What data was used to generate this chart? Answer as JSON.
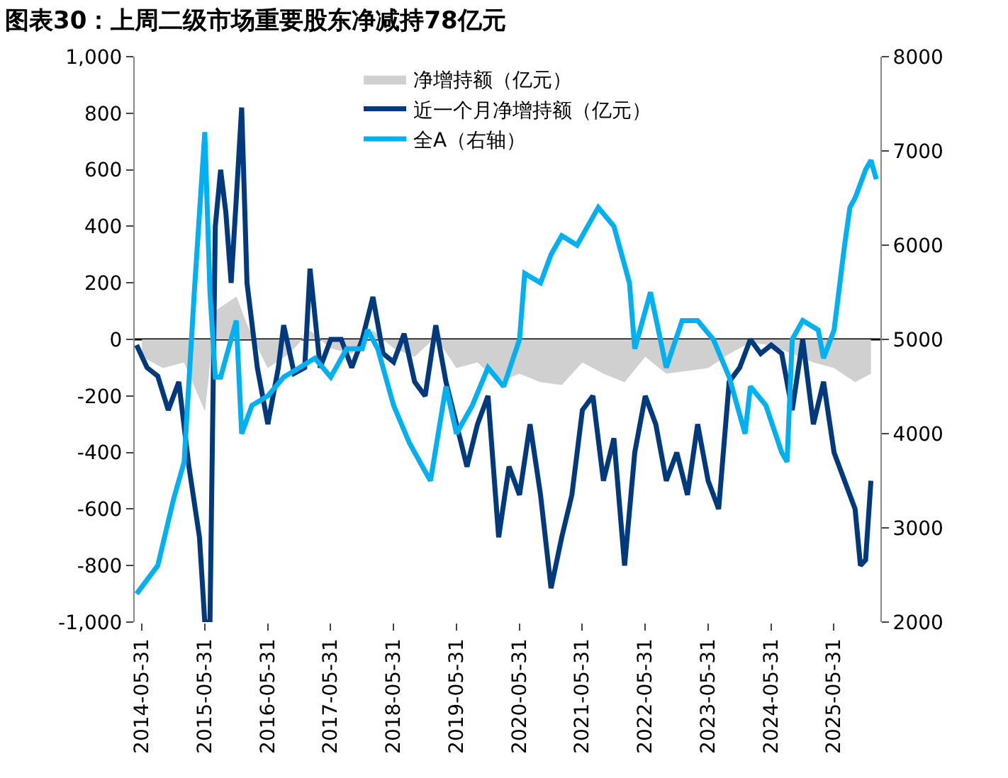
{
  "chart_data": {
    "type": "line",
    "title": "图表30：上周二级市场重要股东净减持78亿元",
    "xlim": [
      "2014-04-20",
      "2026-02-25"
    ],
    "xticks": [
      {
        "value": "2014-05-31",
        "label": "2014-05-31"
      },
      {
        "value": "2015-05-31",
        "label": "2015-05-31"
      },
      {
        "value": "2016-05-31",
        "label": "2016-05-31"
      },
      {
        "value": "2017-05-31",
        "label": "2017-05-31"
      },
      {
        "value": "2018-05-31",
        "label": "2018-05-31"
      },
      {
        "value": "2019-05-31",
        "label": "2019-05-31"
      },
      {
        "value": "2020-05-31",
        "label": "2020-05-31"
      },
      {
        "value": "2021-05-31",
        "label": "2021-05-31"
      },
      {
        "value": "2022-05-31",
        "label": "2022-05-31"
      },
      {
        "value": "2023-05-31",
        "label": "2023-05-31"
      },
      {
        "value": "2024-05-31",
        "label": "2024-05-31"
      },
      {
        "value": "2025-05-31",
        "label": "2025-05-31"
      }
    ],
    "ylim": [
      -1000,
      1000
    ],
    "yticks": [
      {
        "value": -1000,
        "label": "-1,000"
      },
      -800,
      -600,
      -400,
      -200,
      0,
      200,
      400,
      600,
      800,
      {
        "value": 1000,
        "label": "1,000"
      }
    ],
    "y2lim": [
      2000,
      8000
    ],
    "y2ticks": [
      2000,
      3000,
      4000,
      5000,
      6000,
      7000,
      8000
    ],
    "legend": "top",
    "grid": false,
    "ref_lines": [
      {
        "axis": "y",
        "value": 0,
        "color": "#000000"
      }
    ],
    "series": [
      {
        "name": "净增持额（亿元）",
        "type": "area",
        "color": "#d0d0d0",
        "x": [
          "2014-06",
          "2014-10",
          "2015-02",
          "2015-06",
          "2015-08",
          "2015-12",
          "2016-02",
          "2016-06",
          "2016-10",
          "2017-02",
          "2017-06",
          "2017-10",
          "2018-02",
          "2018-06",
          "2018-10",
          "2019-02",
          "2019-06",
          "2019-10",
          "2020-02",
          "2020-06",
          "2020-10",
          "2021-02",
          "2021-06",
          "2021-10",
          "2022-02",
          "2022-06",
          "2022-10",
          "2023-02",
          "2023-06",
          "2023-10",
          "2024-02",
          "2024-06",
          "2024-10",
          "2025-02",
          "2025-06",
          "2025-10",
          "2026-01"
        ],
        "values": [
          -60,
          -100,
          -80,
          -250,
          100,
          150,
          50,
          -100,
          -50,
          30,
          -30,
          -50,
          30,
          -30,
          -60,
          10,
          -100,
          -80,
          -150,
          -120,
          -150,
          -160,
          -80,
          -120,
          -150,
          -60,
          -120,
          -110,
          -100,
          -50,
          -10,
          -20,
          -50,
          -80,
          -100,
          -150,
          -120
        ]
      },
      {
        "name": "近一个月净增持额（亿元）",
        "color": "#003a7d",
        "x": [
          "2014-05",
          "2014-07",
          "2014-09",
          "2014-11",
          "2015-01",
          "2015-03",
          "2015-05",
          "2015-06",
          "2015-07",
          "2015-08",
          "2015-09",
          "2015-10",
          "2015-11",
          "2015-12",
          "2016-01",
          "2016-02",
          "2016-04",
          "2016-06",
          "2016-08",
          "2016-09",
          "2016-11",
          "2017-01",
          "2017-02",
          "2017-04",
          "2017-06",
          "2017-08",
          "2017-10",
          "2017-12",
          "2018-02",
          "2018-04",
          "2018-06",
          "2018-08",
          "2018-10",
          "2018-12",
          "2019-02",
          "2019-04",
          "2019-06",
          "2019-08",
          "2019-10",
          "2019-12",
          "2020-02",
          "2020-04",
          "2020-06",
          "2020-08",
          "2020-10",
          "2020-12",
          "2021-02",
          "2021-04",
          "2021-06",
          "2021-08",
          "2021-10",
          "2021-12",
          "2022-02",
          "2022-04",
          "2022-06",
          "2022-08",
          "2022-10",
          "2022-12",
          "2023-02",
          "2023-04",
          "2023-06",
          "2023-08",
          "2023-10",
          "2023-12",
          "2024-02",
          "2024-04",
          "2024-06",
          "2024-08",
          "2024-10",
          "2024-12",
          "2025-02",
          "2025-04",
          "2025-06",
          "2025-08",
          "2025-10",
          "2025-11",
          "2025-12",
          "2026-01"
        ],
        "values": [
          -20,
          -100,
          -130,
          -250,
          -150,
          -450,
          -700,
          -1000,
          -1000,
          400,
          600,
          450,
          200,
          500,
          820,
          200,
          -100,
          -300,
          -100,
          50,
          -120,
          -100,
          250,
          -100,
          0,
          0,
          -100,
          0,
          150,
          -50,
          -80,
          20,
          -150,
          -200,
          50,
          -150,
          -300,
          -450,
          -300,
          -200,
          -700,
          -450,
          -550,
          -300,
          -550,
          -880,
          -700,
          -550,
          -250,
          -200,
          -500,
          -350,
          -800,
          -400,
          -200,
          -300,
          -500,
          -400,
          -550,
          -300,
          -500,
          -600,
          -150,
          -100,
          0,
          -50,
          -20,
          -50,
          -250,
          0,
          -300,
          -150,
          -400,
          -500,
          -600,
          -800,
          -780,
          -500
        ]
      },
      {
        "name": "全A（右轴）",
        "axis": "y2",
        "color": "#00b0f0",
        "x": [
          "2014-05",
          "2014-09",
          "2014-12",
          "2015-02",
          "2015-04",
          "2015-06",
          "2015-07",
          "2015-08",
          "2015-09",
          "2015-10",
          "2015-12",
          "2016-01",
          "2016-03",
          "2016-06",
          "2016-09",
          "2016-12",
          "2017-03",
          "2017-06",
          "2017-09",
          "2017-12",
          "2018-01",
          "2018-03",
          "2018-06",
          "2018-09",
          "2018-12",
          "2019-01",
          "2019-04",
          "2019-06",
          "2019-09",
          "2019-12",
          "2020-03",
          "2020-06",
          "2020-07",
          "2020-10",
          "2020-12",
          "2021-02",
          "2021-05",
          "2021-08",
          "2021-09",
          "2021-12",
          "2022-03",
          "2022-04",
          "2022-07",
          "2022-10",
          "2023-01",
          "2023-04",
          "2023-07",
          "2023-10",
          "2024-01",
          "2024-02",
          "2024-05",
          "2024-08",
          "2024-09",
          "2024-10",
          "2024-12",
          "2025-03",
          "2025-04",
          "2025-06",
          "2025-08",
          "2025-09",
          "2025-10",
          "2025-12",
          "2026-01",
          "2026-02"
        ],
        "values": [
          2300,
          2600,
          3300,
          3700,
          5500,
          7200,
          5500,
          4600,
          4600,
          4800,
          5200,
          4000,
          4300,
          4400,
          4600,
          4700,
          4800,
          4600,
          4900,
          4900,
          5100,
          4900,
          4300,
          3900,
          3600,
          3500,
          4500,
          4000,
          4300,
          4700,
          4500,
          5000,
          5700,
          5600,
          5900,
          6100,
          6000,
          6300,
          6400,
          6200,
          5600,
          4900,
          5500,
          4700,
          5200,
          5200,
          5000,
          4600,
          4000,
          4500,
          4300,
          3800,
          3700,
          5000,
          5200,
          5100,
          4800,
          5100,
          6000,
          6400,
          6500,
          6800,
          6900,
          6700
        ]
      }
    ]
  }
}
